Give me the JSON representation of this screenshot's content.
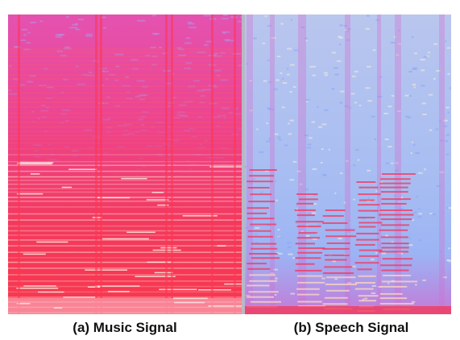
{
  "captions": [
    "(a) Music Signal",
    "(b) Speech Signal"
  ]
}
